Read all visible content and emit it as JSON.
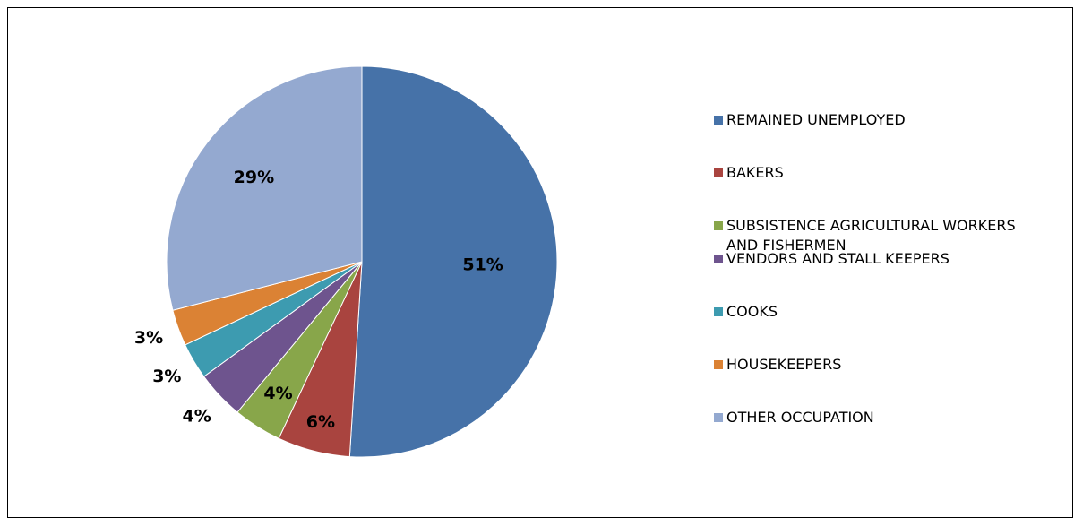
{
  "chart_data": {
    "type": "pie",
    "categories": [
      "REMAINED UNEMPLOYED",
      "BAKERS",
      "SUBSISTENCE AGRICULTURAL WORKERS AND FISHERMEN",
      "VENDORS AND STALL KEEPERS",
      "COOKS",
      "HOUSEKEEPERS",
      "OTHER OCCUPATION"
    ],
    "values": [
      51,
      6,
      4,
      4,
      3,
      3,
      29
    ],
    "value_labels": [
      "51%",
      "6%",
      "4%",
      "4%",
      "3%",
      "3%",
      "29%"
    ],
    "colors": [
      "#4672a8",
      "#a9443f",
      "#88a64a",
      "#6e548e",
      "#3d9bb0",
      "#db8234",
      "#94a9d0"
    ],
    "legend": "right"
  }
}
